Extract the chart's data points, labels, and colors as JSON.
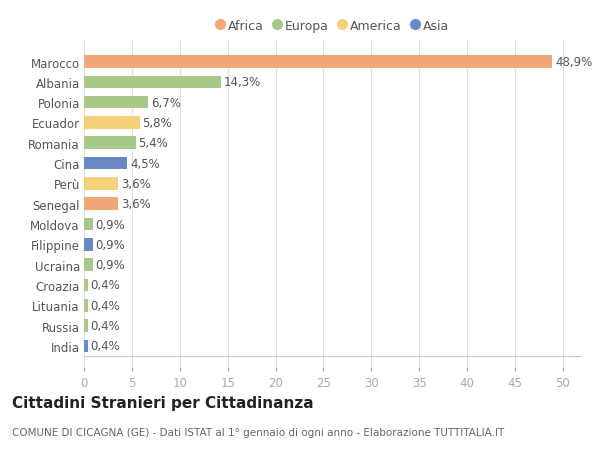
{
  "categories": [
    "Marocco",
    "Albania",
    "Polonia",
    "Ecuador",
    "Romania",
    "Cina",
    "Perù",
    "Senegal",
    "Moldova",
    "Filippine",
    "Ucraina",
    "Croazia",
    "Lituania",
    "Russia",
    "India"
  ],
  "values": [
    48.9,
    14.3,
    6.7,
    5.8,
    5.4,
    4.5,
    3.6,
    3.6,
    0.9,
    0.9,
    0.9,
    0.4,
    0.4,
    0.4,
    0.4
  ],
  "labels": [
    "48,9%",
    "14,3%",
    "6,7%",
    "5,8%",
    "5,4%",
    "4,5%",
    "3,6%",
    "3,6%",
    "0,9%",
    "0,9%",
    "0,9%",
    "0,4%",
    "0,4%",
    "0,4%",
    "0,4%"
  ],
  "continent": [
    "Africa",
    "Europa",
    "Europa",
    "America",
    "Europa",
    "Asia",
    "America",
    "Africa",
    "Europa",
    "Asia",
    "Europa",
    "Europa",
    "Europa",
    "Europa",
    "Asia"
  ],
  "colors": {
    "Africa": "#F0A878",
    "Europa": "#A8C88A",
    "America": "#F5D07A",
    "Asia": "#6888C8"
  },
  "legend_order": [
    "Africa",
    "Europa",
    "America",
    "Asia"
  ],
  "title": "Cittadini Stranieri per Cittadinanza",
  "subtitle": "COMUNE DI CICAGNA (GE) - Dati ISTAT al 1° gennaio di ogni anno - Elaborazione TUTTITALIA.IT",
  "xlim": [
    0,
    52
  ],
  "xticks": [
    0,
    5,
    10,
    15,
    20,
    25,
    30,
    35,
    40,
    45,
    50
  ],
  "bg_color": "#ffffff",
  "grid_color": "#e0e0e0",
  "bar_height": 0.62,
  "label_fontsize": 8.5,
  "tick_fontsize": 8.5,
  "ytick_fontsize": 8.5,
  "title_fontsize": 11,
  "subtitle_fontsize": 7.5
}
